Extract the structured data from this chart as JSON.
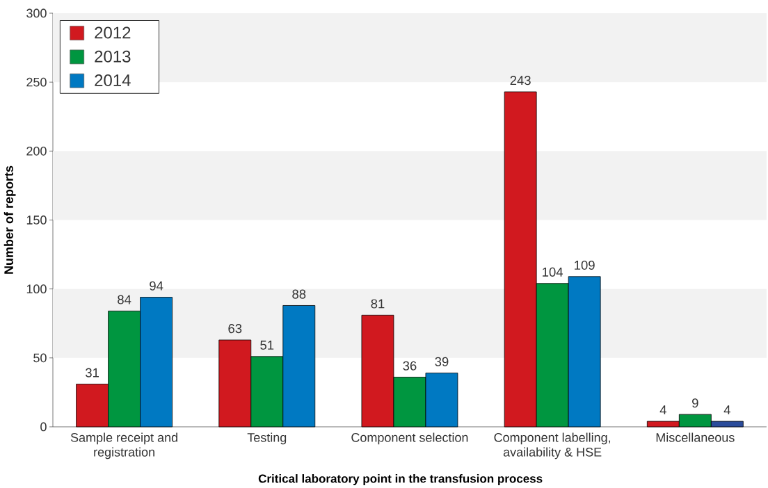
{
  "chart_data": {
    "type": "bar",
    "xlabel": "Critical laboratory point in the transfusion process",
    "ylabel": "Number of reports",
    "categories": [
      "Sample receipt and registration",
      "Testing",
      "Component selection",
      "Component labelling, availability & HSE",
      "Miscellaneous"
    ],
    "series": [
      {
        "name": "2012",
        "color": "#d1191f",
        "values": [
          31,
          63,
          81,
          243,
          4
        ]
      },
      {
        "name": "2013",
        "color": "#009640",
        "values": [
          84,
          51,
          36,
          104,
          9
        ]
      },
      {
        "name": "2014",
        "color": "#0079c2",
        "colors": [
          "#0079c2",
          "#0079c2",
          "#0079c2",
          "#0079c2",
          "#2b4c9b"
        ],
        "values": [
          94,
          88,
          39,
          109,
          4
        ]
      }
    ],
    "ylim": [
      0,
      300
    ],
    "yticks": [
      0,
      50,
      100,
      150,
      200,
      250,
      300
    ],
    "data_labels": true,
    "legend": "top left",
    "bands": [
      {
        "axis": "y",
        "from": 50,
        "to": 100,
        "color": "#f2f2f2"
      },
      {
        "axis": "y",
        "from": 150,
        "to": 200,
        "color": "#f2f2f2"
      },
      {
        "axis": "y",
        "from": 250,
        "to": 300,
        "color": "#f2f2f2"
      }
    ]
  }
}
